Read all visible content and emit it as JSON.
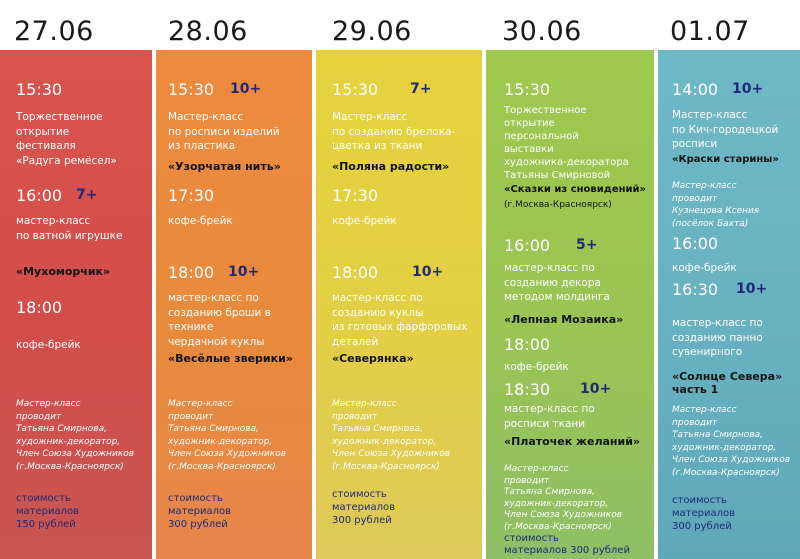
{
  "colors": {
    "day1": "#d4514c",
    "day2": "#ec8b3e",
    "day3": "#e4d03f",
    "day4": "#9dc64f",
    "day5": "#6cb4c3",
    "accent_text": "#1e2a78"
  },
  "days": [
    {
      "date": "27.06",
      "t1": "15:30",
      "d1": [
        "Торжественное",
        "открытие",
        "фестиваля",
        "«Радуга ремёсел»"
      ],
      "t2": "16:00",
      "a2": "7+",
      "d2": [
        "мастер-класс",
        "по ватной игрушке"
      ],
      "title2": "«Мухоморчик»",
      "t3": "18:00",
      "d3": "кофе-брейк",
      "host": [
        "Мастер-класс",
        "проводит",
        "Татьяна Смирнова,",
        "художник-декоратор,",
        "Член Союза Художников",
        "(г.Москва-Красноярск)"
      ],
      "cost": [
        "стоимость",
        "материалов",
        "150 рублей"
      ]
    },
    {
      "date": "28.06",
      "t1": "15:30",
      "a1": "10+",
      "d1": [
        "Мастер-класс",
        "по росписи изделий",
        "из пластика"
      ],
      "title1": "«Узорчатая нить»",
      "t2": "17:30",
      "d2": "кофе-брейк",
      "t3": "18:00",
      "a3": "10+",
      "d3": [
        "мастер-класс по",
        "созданию броши в",
        "технике",
        "чердачной куклы"
      ],
      "title3": "«Весёлые зверики»",
      "host": [
        "Мастер-класс",
        "проводит",
        "Татьяна Смирнова,",
        "художник-декоратор,",
        "Член Союза Художников",
        "(г.Москва-Красноярск)"
      ],
      "cost": [
        "стоимость",
        "материалов",
        "300 рублей"
      ]
    },
    {
      "date": "29.06",
      "t1": "15:30",
      "a1": "7+",
      "d1": [
        "Мастер-класс",
        "по созданию брелока-",
        "цветка из ткани"
      ],
      "title1": "«Поляна радости»",
      "t2": "17:30",
      "d2": "кофе-брейк",
      "t3": "18:00",
      "a3": "10+",
      "d3": [
        "мастер-класс по",
        "созданию куклы",
        "из готовых фарфоровых",
        "деталей"
      ],
      "title3": "«Северянка»",
      "host": [
        "Мастер-класс",
        "проводит",
        "Татьяна Смирнова,",
        "художник-декоратор,",
        "Член Союза Художников",
        "(г.Москва-Красноярск)"
      ],
      "cost": [
        "стоимость",
        "материалов",
        "300 рублей"
      ]
    },
    {
      "date": "30.06",
      "t1": "15:30",
      "d1": [
        "Торжественное",
        "открытие",
        "персональной",
        "выставки",
        "художника-декоратора",
        "Татьяны Смирновой"
      ],
      "title1": "«Сказки из сновидений»",
      "city1": "(г.Москва-Красноярск)",
      "t2": "16:00",
      "a2": "5+",
      "d2": [
        "мастер-класс по",
        "созданию декора",
        "методом молдинга"
      ],
      "title2": "«Лепная Мозаика»",
      "t3": "18:00",
      "d3": "кофе-брейк",
      "t4": "18:30",
      "a4": "10+",
      "d4": [
        "мастер-класс по",
        "росписи ткани"
      ],
      "title4": "«Платочек желаний»",
      "host": [
        "Мастер-класс",
        "проводит",
        "Татьяна Смирнова,",
        "художник-декоратор,",
        "Член Союза Художников",
        "(г.Москва-Красноярск)"
      ],
      "cost": [
        "стоимость",
        "материалов 300 рублей"
      ]
    },
    {
      "date": "01.07",
      "t1": "14:00",
      "a1": "10+",
      "d1": [
        "Мастер-класс",
        "по Кич-городецкой",
        "росписи"
      ],
      "title1": "«Краски старины»",
      "host1": [
        "Мастер-класс",
        "проводит",
        "Кузнецова Ксения",
        "(посёлок Бахта)"
      ],
      "t2": "16:00",
      "d2": "кофе-брейк",
      "t3": "16:30",
      "a3": "10+",
      "d3": [
        "мастер-класс по",
        "созданию панно",
        "сувенирного"
      ],
      "title3": [
        "«Солнце Севера»",
        "часть 1"
      ],
      "host": [
        "Мастер-класс",
        "проводит",
        "Татьяна Смирнова,",
        "художник-декоратор,",
        "Член Союза Художников",
        "(г.Москва-Красноярск)"
      ],
      "cost": [
        "стоимость",
        "материалов",
        "300 рублей"
      ]
    }
  ]
}
